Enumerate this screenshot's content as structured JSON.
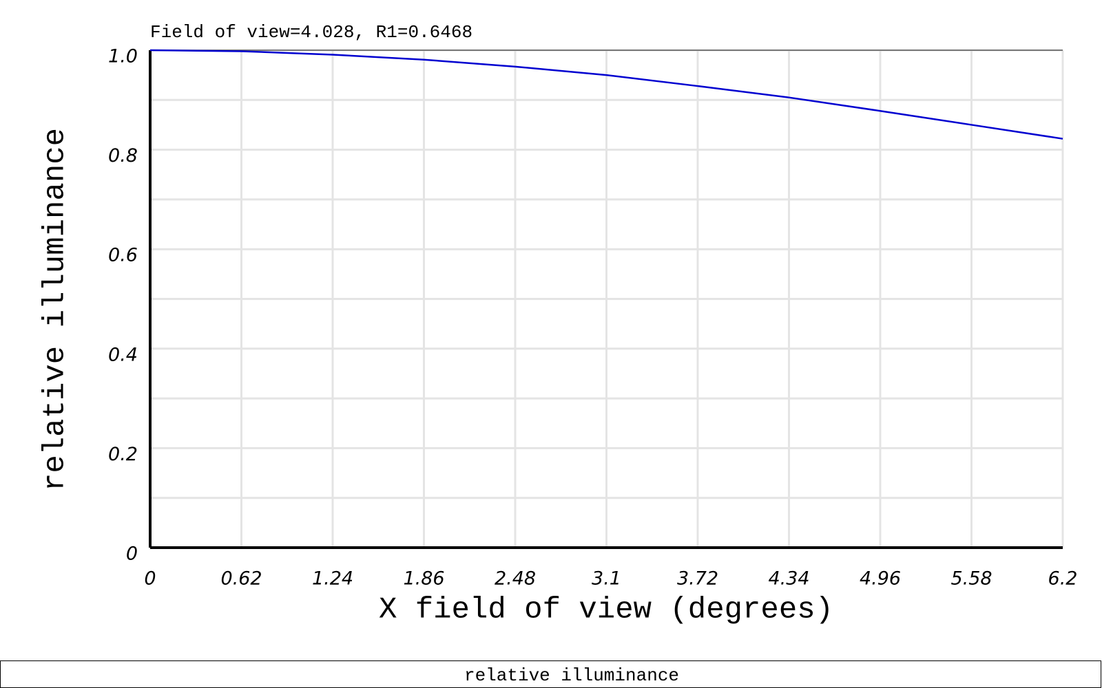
{
  "chart_data": {
    "type": "line",
    "title": "Field of view=4.028, R1=0.6468",
    "x_label": "X field of view (degrees)",
    "y_label": "relative illuminance",
    "x": [
      0,
      0.62,
      1.24,
      1.86,
      2.48,
      3.1,
      3.72,
      4.34,
      4.96,
      5.58,
      6.2
    ],
    "series": [
      {
        "name": "relative illuminance",
        "color": "#0000d0",
        "values": [
          1.0,
          0.998,
          0.991,
          0.981,
          0.967,
          0.95,
          0.928,
          0.905,
          0.878,
          0.85,
          0.822
        ]
      }
    ],
    "xlim": [
      0,
      6.2
    ],
    "xticks": [
      0,
      0.62,
      1.24,
      1.86,
      2.48,
      3.1,
      3.72,
      4.34,
      4.96,
      5.58,
      6.2
    ],
    "ylim": [
      0,
      1
    ],
    "yticks": [
      0,
      0.2,
      0.4,
      0.6,
      0.8,
      {
        "value": 1,
        "label": "1.0"
      }
    ],
    "y_minor_ticks": [
      0.1,
      0.3,
      0.5,
      0.7,
      0.9
    ],
    "grid": true
  }
}
